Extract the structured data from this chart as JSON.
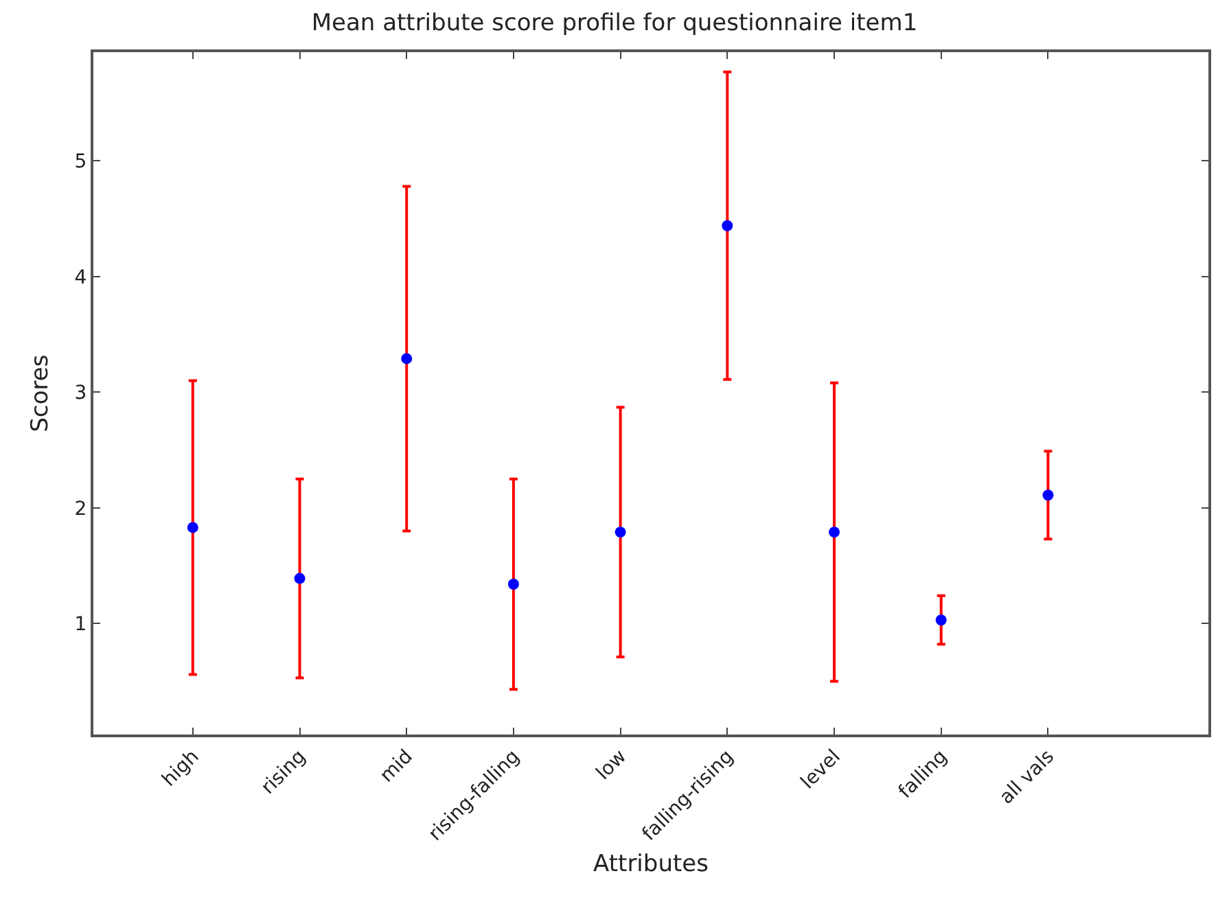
{
  "chart_data": {
    "type": "scatter",
    "title": "Mean attribute score profile for questionnaire item1",
    "xlabel": "Attributes",
    "ylabel": "Scores",
    "categories": [
      "high",
      "rising",
      "mid",
      "rising-falling",
      "low",
      "falling-rising",
      "level",
      "falling",
      "all vals"
    ],
    "series": [
      {
        "color": "#0000ff",
        "values": [
          1.83,
          1.39,
          3.29,
          1.34,
          1.79,
          4.44,
          1.79,
          1.03,
          2.11
        ],
        "errors": [
          1.27,
          0.86,
          1.49,
          0.91,
          1.08,
          1.33,
          1.29,
          0.21,
          0.38
        ]
      }
    ],
    "ylim": [
      0.04,
      5.94
    ],
    "yticks": [
      1,
      2,
      3,
      4,
      5
    ],
    "marker": "circle"
  }
}
